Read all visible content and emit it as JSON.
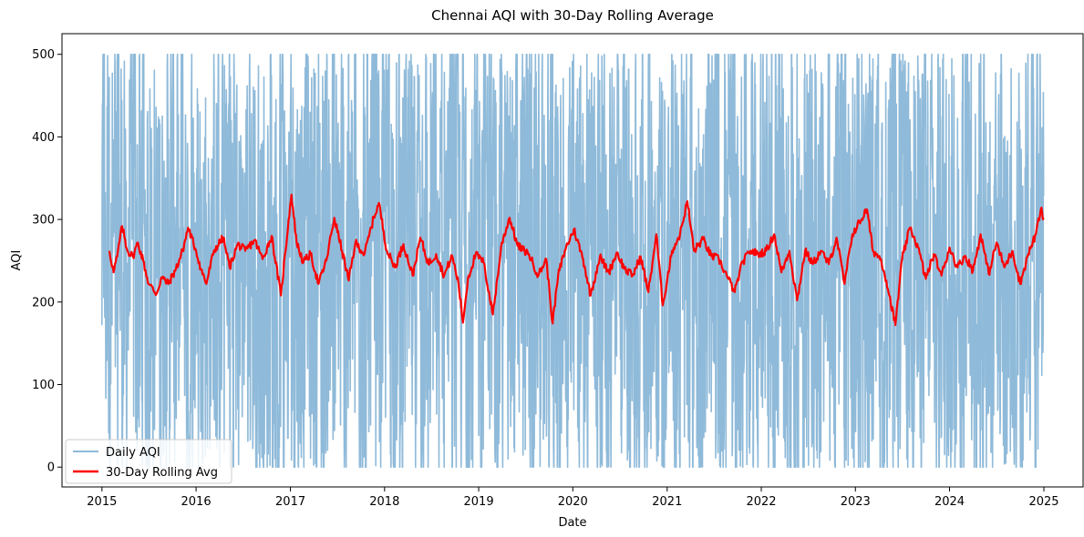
{
  "chart_data": {
    "type": "line",
    "title": "Chennai AQI with 30-Day Rolling Average",
    "xlabel": "Date",
    "ylabel": "AQI",
    "x_ticks": [
      "2015",
      "2016",
      "2017",
      "2018",
      "2019",
      "2020",
      "2021",
      "2022",
      "2023",
      "2024",
      "2025"
    ],
    "y_ticks": [
      "0",
      "100",
      "200",
      "300",
      "400",
      "500"
    ],
    "xlim": [
      "2014-07-30",
      "2025-06-02"
    ],
    "ylim": [
      -24,
      525
    ],
    "grid": false,
    "legend_position": "lower-left",
    "date_range": [
      "2015-01-01",
      "2024-12-31"
    ],
    "series": [
      {
        "name": "Daily AQI",
        "color": "#8fbad9",
        "note": "daily noisy values spanning roughly 0 to 500"
      },
      {
        "name": "30-Day Rolling Avg",
        "color": "#ff0000",
        "points": [
          [
            "2015-01-30",
            262
          ],
          [
            "2015-02-15",
            236
          ],
          [
            "2015-03-01",
            255
          ],
          [
            "2015-03-20",
            292
          ],
          [
            "2015-04-10",
            262
          ],
          [
            "2015-05-01",
            255
          ],
          [
            "2015-05-20",
            272
          ],
          [
            "2015-06-10",
            250
          ],
          [
            "2015-07-01",
            222
          ],
          [
            "2015-08-01",
            210
          ],
          [
            "2015-08-20",
            230
          ],
          [
            "2015-09-15",
            222
          ],
          [
            "2015-10-15",
            240
          ],
          [
            "2015-11-10",
            262
          ],
          [
            "2015-12-01",
            290
          ],
          [
            "2016-01-01",
            262
          ],
          [
            "2016-01-20",
            240
          ],
          [
            "2016-02-10",
            222
          ],
          [
            "2016-03-10",
            262
          ],
          [
            "2016-04-15",
            278
          ],
          [
            "2016-05-10",
            242
          ],
          [
            "2016-06-10",
            270
          ],
          [
            "2016-07-10",
            262
          ],
          [
            "2016-08-15",
            275
          ],
          [
            "2016-09-15",
            252
          ],
          [
            "2016-10-20",
            280
          ],
          [
            "2016-11-25",
            208
          ],
          [
            "2016-12-25",
            300
          ],
          [
            "2017-01-05",
            330
          ],
          [
            "2017-01-25",
            272
          ],
          [
            "2017-02-20",
            248
          ],
          [
            "2017-03-20",
            258
          ],
          [
            "2017-04-20",
            222
          ],
          [
            "2017-05-20",
            250
          ],
          [
            "2017-06-20",
            302
          ],
          [
            "2017-07-20",
            262
          ],
          [
            "2017-08-15",
            226
          ],
          [
            "2017-09-10",
            272
          ],
          [
            "2017-10-15",
            258
          ],
          [
            "2017-11-20",
            302
          ],
          [
            "2017-12-10",
            320
          ],
          [
            "2018-01-10",
            262
          ],
          [
            "2018-02-10",
            242
          ],
          [
            "2018-03-15",
            270
          ],
          [
            "2018-04-20",
            232
          ],
          [
            "2018-05-20",
            278
          ],
          [
            "2018-06-20",
            246
          ],
          [
            "2018-07-20",
            258
          ],
          [
            "2018-08-20",
            232
          ],
          [
            "2018-09-20",
            256
          ],
          [
            "2018-10-15",
            222
          ],
          [
            "2018-11-01",
            175
          ],
          [
            "2018-11-20",
            228
          ],
          [
            "2018-12-20",
            258
          ],
          [
            "2019-01-20",
            248
          ],
          [
            "2019-02-25",
            185
          ],
          [
            "2019-04-01",
            272
          ],
          [
            "2019-05-01",
            302
          ],
          [
            "2019-06-01",
            268
          ],
          [
            "2019-07-15",
            258
          ],
          [
            "2019-08-20",
            232
          ],
          [
            "2019-09-20",
            252
          ],
          [
            "2019-10-15",
            174
          ],
          [
            "2019-11-05",
            232
          ],
          [
            "2019-12-01",
            262
          ],
          [
            "2020-01-05",
            288
          ],
          [
            "2020-02-10",
            252
          ],
          [
            "2020-03-10",
            208
          ],
          [
            "2020-04-15",
            255
          ],
          [
            "2020-05-20",
            236
          ],
          [
            "2020-06-20",
            260
          ],
          [
            "2020-07-20",
            240
          ],
          [
            "2020-08-20",
            232
          ],
          [
            "2020-09-20",
            255
          ],
          [
            "2020-10-20",
            212
          ],
          [
            "2020-11-20",
            282
          ],
          [
            "2020-12-15",
            196
          ],
          [
            "2021-01-20",
            262
          ],
          [
            "2021-02-20",
            282
          ],
          [
            "2021-03-20",
            322
          ],
          [
            "2021-04-15",
            262
          ],
          [
            "2021-05-20",
            276
          ],
          [
            "2021-06-20",
            256
          ],
          [
            "2021-07-20",
            252
          ],
          [
            "2021-08-20",
            232
          ],
          [
            "2021-09-20",
            212
          ],
          [
            "2021-10-20",
            248
          ],
          [
            "2021-11-20",
            262
          ],
          [
            "2021-12-20",
            258
          ],
          [
            "2022-01-20",
            262
          ],
          [
            "2022-02-20",
            282
          ],
          [
            "2022-03-20",
            236
          ],
          [
            "2022-04-20",
            262
          ],
          [
            "2022-05-20",
            202
          ],
          [
            "2022-06-20",
            262
          ],
          [
            "2022-07-20",
            246
          ],
          [
            "2022-08-20",
            262
          ],
          [
            "2022-09-20",
            246
          ],
          [
            "2022-10-20",
            278
          ],
          [
            "2022-11-20",
            222
          ],
          [
            "2022-12-20",
            282
          ],
          [
            "2023-02-15",
            312
          ],
          [
            "2023-03-10",
            262
          ],
          [
            "2023-04-10",
            252
          ],
          [
            "2023-05-01",
            226
          ],
          [
            "2023-06-05",
            172
          ],
          [
            "2023-07-01",
            252
          ],
          [
            "2023-08-01",
            290
          ],
          [
            "2023-09-01",
            266
          ],
          [
            "2023-10-01",
            228
          ],
          [
            "2023-11-01",
            258
          ],
          [
            "2023-12-01",
            232
          ],
          [
            "2024-01-01",
            266
          ],
          [
            "2024-02-01",
            242
          ],
          [
            "2024-03-01",
            256
          ],
          [
            "2024-04-01",
            238
          ],
          [
            "2024-05-01",
            282
          ],
          [
            "2024-06-01",
            234
          ],
          [
            "2024-07-01",
            272
          ],
          [
            "2024-08-01",
            242
          ],
          [
            "2024-09-01",
            262
          ],
          [
            "2024-10-01",
            222
          ],
          [
            "2024-11-01",
            258
          ],
          [
            "2024-12-01",
            282
          ],
          [
            "2024-12-20",
            312
          ],
          [
            "2024-12-31",
            302
          ]
        ]
      }
    ]
  }
}
